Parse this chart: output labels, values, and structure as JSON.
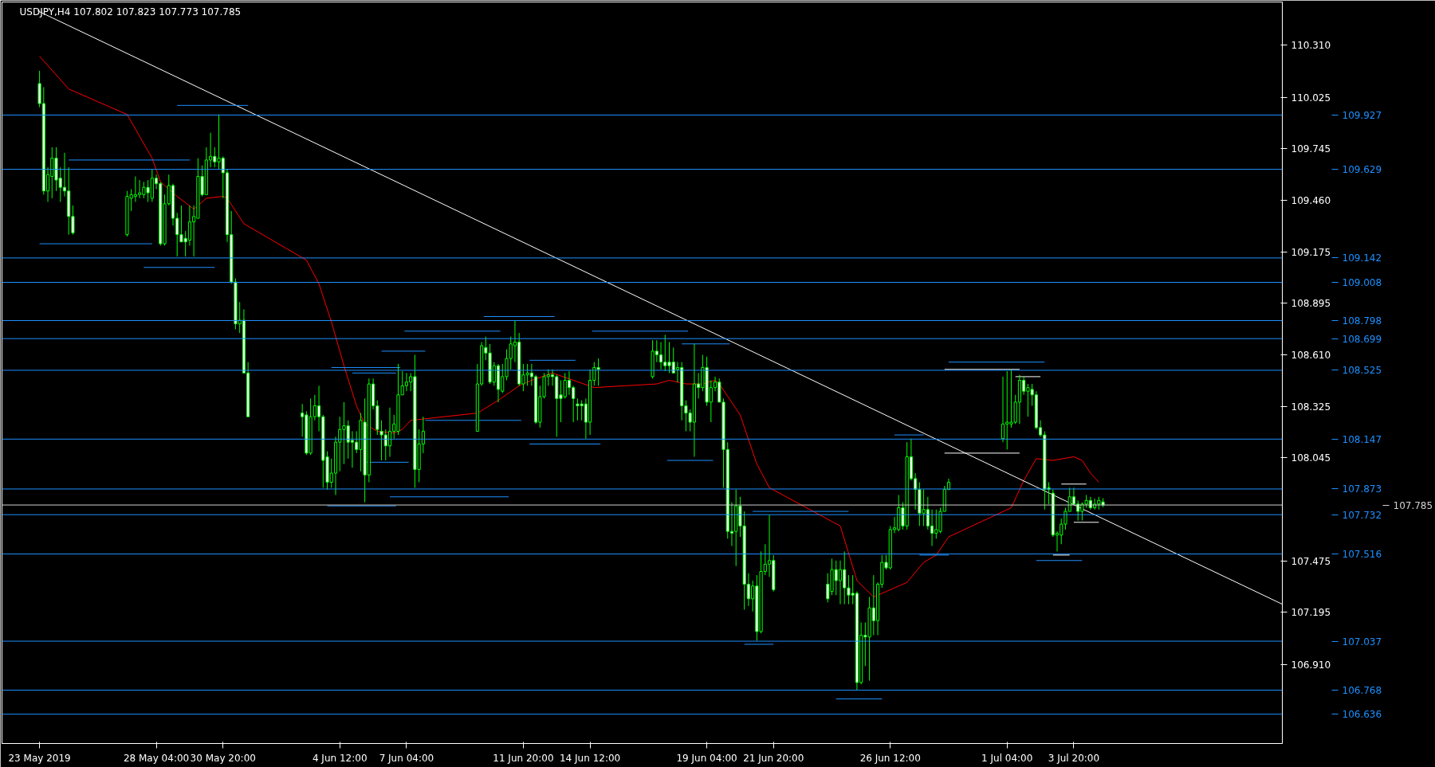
{
  "chart_data": {
    "type": "candlestick",
    "title": "USDJPY,H4  107.802 107.823 107.773 107.785",
    "color": "#00ff00",
    "x": [
      "2019-05-23T12:00",
      "2019-05-23T16:00",
      "2019-05-23T20:00",
      "2019-05-24T00:00",
      "2019-05-24T04:00",
      "2019-05-24T08:00",
      "2019-05-24T12:00",
      "2019-05-24T16:00",
      "2019-05-24T20:00",
      "2019-05-27T00:00",
      "2019-05-27T04:00",
      "2019-05-27T08:00",
      "2019-05-27T12:00",
      "2019-05-27T16:00",
      "2019-05-27T20:00",
      "2019-05-28T00:00",
      "2019-05-28T04:00",
      "2019-05-28T08:00",
      "2019-05-28T12:00",
      "2019-05-28T16:00",
      "2019-05-28T20:00",
      "2019-05-29T00:00",
      "2019-05-29T04:00",
      "2019-05-29T08:00",
      "2019-05-29T12:00",
      "2019-05-29T16:00",
      "2019-05-29T20:00",
      "2019-05-30T00:00",
      "2019-05-30T04:00",
      "2019-05-30T08:00",
      "2019-05-30T12:00",
      "2019-05-30T16:00",
      "2019-05-30T20:00",
      "2019-05-31T00:00",
      "2019-05-31T04:00",
      "2019-05-31T08:00",
      "2019-05-31T12:00",
      "2019-05-31T16:00",
      "2019-05-31T20:00",
      "2019-06-03T00:00",
      "2019-06-03T04:00",
      "2019-06-03T08:00",
      "2019-06-03T12:00",
      "2019-06-03T16:00",
      "2019-06-03T20:00",
      "2019-06-04T00:00",
      "2019-06-04T04:00",
      "2019-06-04T08:00",
      "2019-06-04T12:00",
      "2019-06-04T16:00",
      "2019-06-04T20:00",
      "2019-06-05T00:00",
      "2019-06-05T04:00",
      "2019-06-05T08:00",
      "2019-06-05T12:00",
      "2019-06-05T16:00",
      "2019-06-05T20:00",
      "2019-06-06T00:00",
      "2019-06-06T04:00",
      "2019-06-06T08:00",
      "2019-06-06T12:00",
      "2019-06-06T16:00",
      "2019-06-06T20:00",
      "2019-06-07T00:00",
      "2019-06-07T04:00",
      "2019-06-07T08:00",
      "2019-06-07T12:00",
      "2019-06-07T16:00",
      "2019-06-07T20:00",
      "2019-06-10T00:00",
      "2019-06-10T04:00",
      "2019-06-10T08:00",
      "2019-06-10T12:00",
      "2019-06-10T16:00",
      "2019-06-10T20:00",
      "2019-06-11T00:00",
      "2019-06-11T04:00",
      "2019-06-11T08:00",
      "2019-06-11T12:00",
      "2019-06-11T16:00",
      "2019-06-11T20:00",
      "2019-06-12T00:00",
      "2019-06-12T04:00",
      "2019-06-12T08:00",
      "2019-06-12T12:00",
      "2019-06-12T16:00",
      "2019-06-12T20:00",
      "2019-06-13T00:00",
      "2019-06-13T04:00",
      "2019-06-13T08:00",
      "2019-06-13T12:00",
      "2019-06-13T16:00",
      "2019-06-13T20:00",
      "2019-06-14T00:00",
      "2019-06-14T04:00",
      "2019-06-14T08:00",
      "2019-06-14T12:00",
      "2019-06-14T16:00",
      "2019-06-14T20:00",
      "2019-06-17T00:00",
      "2019-06-17T04:00",
      "2019-06-17T08:00",
      "2019-06-17T12:00",
      "2019-06-17T16:00",
      "2019-06-17T20:00",
      "2019-06-18T00:00",
      "2019-06-18T04:00",
      "2019-06-18T08:00",
      "2019-06-18T12:00",
      "2019-06-18T16:00",
      "2019-06-18T20:00",
      "2019-06-19T00:00",
      "2019-06-19T04:00",
      "2019-06-19T08:00",
      "2019-06-19T12:00",
      "2019-06-19T16:00",
      "2019-06-19T20:00",
      "2019-06-20T00:00",
      "2019-06-20T04:00",
      "2019-06-20T08:00",
      "2019-06-20T12:00",
      "2019-06-20T16:00",
      "2019-06-20T20:00",
      "2019-06-21T00:00",
      "2019-06-21T04:00",
      "2019-06-21T08:00",
      "2019-06-21T12:00",
      "2019-06-21T16:00",
      "2019-06-21T20:00",
      "2019-06-24T00:00",
      "2019-06-24T04:00",
      "2019-06-24T08:00",
      "2019-06-24T12:00",
      "2019-06-24T16:00",
      "2019-06-24T20:00",
      "2019-06-25T00:00",
      "2019-06-25T04:00",
      "2019-06-25T08:00",
      "2019-06-25T12:00",
      "2019-06-25T16:00",
      "2019-06-25T20:00",
      "2019-06-26T00:00",
      "2019-06-26T04:00",
      "2019-06-26T08:00",
      "2019-06-26T12:00",
      "2019-06-26T16:00",
      "2019-06-26T20:00",
      "2019-06-27T00:00",
      "2019-06-27T04:00",
      "2019-06-27T08:00",
      "2019-06-27T12:00",
      "2019-06-27T16:00",
      "2019-06-27T20:00",
      "2019-06-28T00:00",
      "2019-06-28T04:00",
      "2019-06-28T08:00",
      "2019-06-28T12:00",
      "2019-06-28T16:00",
      "2019-06-28T20:00",
      "2019-07-01T00:00",
      "2019-07-01T04:00",
      "2019-07-01T08:00",
      "2019-07-01T12:00",
      "2019-07-01T16:00",
      "2019-07-01T20:00",
      "2019-07-02T00:00",
      "2019-07-02T04:00",
      "2019-07-02T08:00",
      "2019-07-02T12:00",
      "2019-07-02T16:00",
      "2019-07-02T20:00",
      "2019-07-03T00:00",
      "2019-07-03T04:00",
      "2019-07-03T08:00",
      "2019-07-03T12:00",
      "2019-07-03T16:00",
      "2019-07-03T20:00",
      "2019-07-04T00:00",
      "2019-07-04T04:00",
      "2019-07-04T08:00",
      "2019-07-04T12:00",
      "2019-07-04T16:00",
      "2019-07-04T20:00",
      "2019-07-05T00:00"
    ],
    "ohlc": [
      [
        110.1,
        110.17,
        109.97,
        109.99
      ],
      [
        109.99,
        110.08,
        109.49,
        109.51
      ],
      [
        109.51,
        109.64,
        109.45,
        109.6
      ],
      [
        109.59,
        109.75,
        109.47,
        109.69
      ],
      [
        109.69,
        109.75,
        109.51,
        109.57
      ],
      [
        109.58,
        109.64,
        109.45,
        109.53
      ],
      [
        109.53,
        109.72,
        109.48,
        109.51
      ],
      [
        109.51,
        109.64,
        109.27,
        109.37
      ],
      [
        109.37,
        109.43,
        109.27,
        109.28
      ],
      [
        109.27,
        109.51,
        109.26,
        109.48
      ],
      [
        109.47,
        109.52,
        109.4,
        109.49
      ],
      [
        109.48,
        109.59,
        109.45,
        109.49
      ],
      [
        109.49,
        109.57,
        109.47,
        109.5
      ],
      [
        109.49,
        109.56,
        109.47,
        109.53
      ],
      [
        109.53,
        109.57,
        109.45,
        109.5
      ],
      [
        109.47,
        109.63,
        109.45,
        109.58
      ],
      [
        109.58,
        109.6,
        109.52,
        109.55
      ],
      [
        109.55,
        109.56,
        109.21,
        109.22
      ],
      [
        109.22,
        109.49,
        109.21,
        109.44
      ],
      [
        109.44,
        109.6,
        109.43,
        109.54
      ],
      [
        109.54,
        109.55,
        109.32,
        109.36
      ],
      [
        109.36,
        109.39,
        109.15,
        109.27
      ],
      [
        109.27,
        109.43,
        109.23,
        109.23
      ],
      [
        109.25,
        109.29,
        109.15,
        109.23
      ],
      [
        109.24,
        109.43,
        109.21,
        109.34
      ],
      [
        109.34,
        109.43,
        109.15,
        109.37
      ],
      [
        109.36,
        109.69,
        109.36,
        109.59
      ],
      [
        109.59,
        109.65,
        109.48,
        109.49
      ],
      [
        109.49,
        109.75,
        109.49,
        109.68
      ],
      [
        109.68,
        109.83,
        109.64,
        109.7
      ],
      [
        109.7,
        109.75,
        109.64,
        109.67
      ],
      [
        109.67,
        109.93,
        109.63,
        109.69
      ],
      [
        109.69,
        109.7,
        109.47,
        109.61
      ],
      [
        109.61,
        109.63,
        109.23,
        109.27
      ],
      [
        109.27,
        109.4,
        109.0,
        109.01
      ],
      [
        109.01,
        109.03,
        108.75,
        108.78
      ],
      [
        108.78,
        108.9,
        108.73,
        108.8
      ],
      [
        108.8,
        108.86,
        108.51,
        108.51
      ],
      [
        108.51,
        108.57,
        108.27,
        108.27
      ],
      [
        108.29,
        108.34,
        108.16,
        108.27
      ],
      [
        108.28,
        108.3,
        108.06,
        108.07
      ],
      [
        108.07,
        108.37,
        108.06,
        108.27
      ],
      [
        108.27,
        108.39,
        108.25,
        108.33
      ],
      [
        108.33,
        108.44,
        108.19,
        108.27
      ],
      [
        108.27,
        108.28,
        107.88,
        108.03
      ],
      [
        108.05,
        108.08,
        107.87,
        107.91
      ],
      [
        107.91,
        108.04,
        107.88,
        107.96
      ],
      [
        107.96,
        108.16,
        107.84,
        108.13
      ],
      [
        108.13,
        108.27,
        107.97,
        108.2
      ],
      [
        108.2,
        108.35,
        108.01,
        108.22
      ],
      [
        108.22,
        108.25,
        108.04,
        108.13
      ],
      [
        108.14,
        108.19,
        107.99,
        108.13
      ],
      [
        108.13,
        108.19,
        108.07,
        108.09
      ],
      [
        108.09,
        108.29,
        107.97,
        108.25
      ],
      [
        108.24,
        108.37,
        107.8,
        107.95
      ],
      [
        107.95,
        108.48,
        107.91,
        108.45
      ],
      [
        108.45,
        108.48,
        108.31,
        108.33
      ],
      [
        108.33,
        108.36,
        108.17,
        108.2
      ],
      [
        108.19,
        108.25,
        108.03,
        108.17
      ],
      [
        108.17,
        108.2,
        108.03,
        108.11
      ],
      [
        108.11,
        108.32,
        108.05,
        108.19
      ],
      [
        108.19,
        108.28,
        108.15,
        108.23
      ],
      [
        108.19,
        108.56,
        108.17,
        108.39
      ],
      [
        108.39,
        108.52,
        108.39,
        108.44
      ],
      [
        108.44,
        108.51,
        108.41,
        108.46
      ],
      [
        108.46,
        108.51,
        108.41,
        108.49
      ],
      [
        108.49,
        108.61,
        107.88,
        107.98
      ],
      [
        107.98,
        108.2,
        107.91,
        108.12
      ],
      [
        108.12,
        108.27,
        108.07,
        108.19
      ],
      [
        108.19,
        108.56,
        108.19,
        108.45
      ],
      [
        108.45,
        108.68,
        108.44,
        108.66
      ],
      [
        108.65,
        108.71,
        108.58,
        108.62
      ],
      [
        108.62,
        108.67,
        108.45,
        108.46
      ],
      [
        108.46,
        108.57,
        108.44,
        108.55
      ],
      [
        108.55,
        108.56,
        108.35,
        108.42
      ],
      [
        108.41,
        108.56,
        108.4,
        108.49
      ],
      [
        108.49,
        108.64,
        108.47,
        108.59
      ],
      [
        108.59,
        108.71,
        108.53,
        108.67
      ],
      [
        108.66,
        108.8,
        108.57,
        108.68
      ],
      [
        108.68,
        108.73,
        108.44,
        108.45
      ],
      [
        108.45,
        108.56,
        108.41,
        108.5
      ],
      [
        108.5,
        108.56,
        108.44,
        108.51
      ],
      [
        108.51,
        108.56,
        108.44,
        108.49
      ],
      [
        108.49,
        108.5,
        108.23,
        108.24
      ],
      [
        108.24,
        108.44,
        108.21,
        108.38
      ],
      [
        108.38,
        108.51,
        108.37,
        108.49
      ],
      [
        108.49,
        108.53,
        108.44,
        108.5
      ],
      [
        108.5,
        108.53,
        108.44,
        108.49
      ],
      [
        108.49,
        108.5,
        108.16,
        108.37
      ],
      [
        108.39,
        108.47,
        108.24,
        108.37
      ],
      [
        108.38,
        108.51,
        108.37,
        108.47
      ],
      [
        108.47,
        108.52,
        108.39,
        108.43
      ],
      [
        108.43,
        108.44,
        108.24,
        108.37
      ],
      [
        108.34,
        108.37,
        108.25,
        108.33
      ],
      [
        108.34,
        108.36,
        108.25,
        108.33
      ],
      [
        108.34,
        108.37,
        108.15,
        108.24
      ],
      [
        108.24,
        108.53,
        108.17,
        108.47
      ],
      [
        108.47,
        108.57,
        108.44,
        108.54
      ],
      [
        108.54,
        108.59,
        108.44,
        108.53
      ],
      [
        108.49,
        108.69,
        108.48,
        108.63
      ],
      [
        108.63,
        108.69,
        108.57,
        108.61
      ],
      [
        108.61,
        108.68,
        108.53,
        108.57
      ],
      [
        108.57,
        108.72,
        108.52,
        108.55
      ],
      [
        108.57,
        108.68,
        108.51,
        108.55
      ],
      [
        108.57,
        108.65,
        108.51,
        108.51
      ],
      [
        108.53,
        108.57,
        108.46,
        108.54
      ],
      [
        108.54,
        108.57,
        108.25,
        108.33
      ],
      [
        108.33,
        108.36,
        108.19,
        108.29
      ],
      [
        108.29,
        108.31,
        108.19,
        108.24
      ],
      [
        108.24,
        108.67,
        108.05,
        108.45
      ],
      [
        108.45,
        108.51,
        108.37,
        108.43
      ],
      [
        108.43,
        108.61,
        108.41,
        108.54
      ],
      [
        108.54,
        108.6,
        108.33,
        108.35
      ],
      [
        108.35,
        108.47,
        108.24,
        108.43
      ],
      [
        108.43,
        108.49,
        108.41,
        108.46
      ],
      [
        108.46,
        108.48,
        108.35,
        108.35
      ],
      [
        108.35,
        108.37,
        107.88,
        108.09
      ],
      [
        108.09,
        108.13,
        107.6,
        107.64
      ],
      [
        107.64,
        107.8,
        107.56,
        107.63
      ],
      [
        107.64,
        107.87,
        107.45,
        107.78
      ],
      [
        107.78,
        107.83,
        107.61,
        107.67
      ],
      [
        107.67,
        107.75,
        107.21,
        107.35
      ],
      [
        107.35,
        107.41,
        107.23,
        107.27
      ],
      [
        107.27,
        107.37,
        107.2,
        107.34
      ],
      [
        107.34,
        107.4,
        107.04,
        107.09
      ],
      [
        107.09,
        107.53,
        107.08,
        107.42
      ],
      [
        107.42,
        107.57,
        107.4,
        107.46
      ],
      [
        107.46,
        107.73,
        107.39,
        107.48
      ],
      [
        107.48,
        107.51,
        107.31,
        107.32
      ],
      [
        107.35,
        107.41,
        107.25,
        107.27
      ],
      [
        107.31,
        107.49,
        107.29,
        107.43
      ],
      [
        107.43,
        107.48,
        107.29,
        107.37
      ],
      [
        107.37,
        107.48,
        107.24,
        107.43
      ],
      [
        107.43,
        107.53,
        107.24,
        107.33
      ],
      [
        107.33,
        107.4,
        107.24,
        107.29
      ],
      [
        107.3,
        107.4,
        107.24,
        107.29
      ],
      [
        107.3,
        107.31,
        106.77,
        106.81
      ],
      [
        106.81,
        107.14,
        106.8,
        107.07
      ],
      [
        107.07,
        107.14,
        106.9,
        107.06
      ],
      [
        107.06,
        107.28,
        106.82,
        107.22
      ],
      [
        107.22,
        107.4,
        107.07,
        107.15
      ],
      [
        107.15,
        107.36,
        107.07,
        107.35
      ],
      [
        107.35,
        107.51,
        107.33,
        107.47
      ],
      [
        107.47,
        107.51,
        107.43,
        107.44
      ],
      [
        107.44,
        107.67,
        107.43,
        107.65
      ],
      [
        107.65,
        107.72,
        107.63,
        107.66
      ],
      [
        107.65,
        107.84,
        107.64,
        107.77
      ],
      [
        107.77,
        107.8,
        107.65,
        107.67
      ],
      [
        107.67,
        108.13,
        107.65,
        108.05
      ],
      [
        108.05,
        108.15,
        107.92,
        107.93
      ],
      [
        107.93,
        107.96,
        107.76,
        107.87
      ],
      [
        107.87,
        107.91,
        107.67,
        107.74
      ],
      [
        107.74,
        107.87,
        107.67,
        107.76
      ],
      [
        107.76,
        107.83,
        107.65,
        107.67
      ],
      [
        107.67,
        107.76,
        107.56,
        107.63
      ],
      [
        107.63,
        107.76,
        107.6,
        107.65
      ],
      [
        107.64,
        107.77,
        107.63,
        107.75
      ],
      [
        107.75,
        107.89,
        107.75,
        107.87
      ],
      [
        107.87,
        107.93,
        107.87,
        107.91
      ],
      [
        108.15,
        108.49,
        108.13,
        108.23
      ],
      [
        108.23,
        108.52,
        108.09,
        108.24
      ],
      [
        108.23,
        108.53,
        108.21,
        108.24
      ],
      [
        108.24,
        108.39,
        108.23,
        108.35
      ],
      [
        108.35,
        108.5,
        108.23,
        108.47
      ],
      [
        108.47,
        108.49,
        108.39,
        108.41
      ],
      [
        108.41,
        108.45,
        108.27,
        108.43
      ],
      [
        108.42,
        108.45,
        108.33,
        108.39
      ],
      [
        108.39,
        108.41,
        108.2,
        108.21
      ],
      [
        108.21,
        108.25,
        108.16,
        108.17
      ],
      [
        108.17,
        108.19,
        107.76,
        107.87
      ],
      [
        107.88,
        107.91,
        107.79,
        107.87
      ],
      [
        107.85,
        107.87,
        107.61,
        107.62
      ],
      [
        107.62,
        107.64,
        107.53,
        107.63
      ],
      [
        107.62,
        107.71,
        107.57,
        107.68
      ],
      [
        107.68,
        107.77,
        107.65,
        107.75
      ],
      [
        107.75,
        107.88,
        107.75,
        107.83
      ],
      [
        107.83,
        107.88,
        107.79,
        107.79
      ],
      [
        107.79,
        107.81,
        107.7,
        107.75
      ],
      [
        107.75,
        107.8,
        107.7,
        107.79
      ],
      [
        107.79,
        107.84,
        107.77,
        107.81
      ],
      [
        107.81,
        107.83,
        107.76,
        107.77
      ],
      [
        107.77,
        107.82,
        107.76,
        107.79
      ],
      [
        107.79,
        107.83,
        107.76,
        107.81
      ],
      [
        107.802,
        107.823,
        107.773,
        107.785
      ]
    ],
    "xlim": [
      "2019-05-22T00:00",
      "2019-07-12T04:00"
    ],
    "xticks": [
      {
        "value": "2019-05-23T12:00",
        "label": "23 May 2019"
      },
      {
        "value": "2019-05-28T04:00",
        "label": "28 May 04:00"
      },
      {
        "value": "2019-05-30T20:00",
        "label": "30 May 20:00"
      },
      {
        "value": "2019-06-04T12:00",
        "label": "4 Jun 12:00"
      },
      {
        "value": "2019-06-07T04:00",
        "label": "7 Jun 04:00"
      },
      {
        "value": "2019-06-11T20:00",
        "label": "11 Jun 20:00"
      },
      {
        "value": "2019-06-14T12:00",
        "label": "14 Jun 12:00"
      },
      {
        "value": "2019-06-19T04:00",
        "label": "19 Jun 04:00"
      },
      {
        "value": "2019-06-21T20:00",
        "label": "21 Jun 20:00"
      },
      {
        "value": "2019-06-26T12:00",
        "label": "26 Jun 12:00"
      },
      {
        "value": "2019-07-01T04:00",
        "label": "1 Jul 04:00"
      },
      {
        "value": "2019-07-03T20:00",
        "label": "3 Jul 20:00"
      }
    ],
    "ylim": [
      106.475,
      110.548
    ],
    "yticks": [
      {
        "value": 110.31,
        "label": "110.310"
      },
      110.025,
      109.745,
      {
        "value": 109.46,
        "label": "109.460"
      },
      109.175,
      108.895,
      {
        "value": 108.61,
        "label": "108.610"
      },
      108.325,
      108.045,
      107.475,
      107.195,
      {
        "value": 106.91,
        "label": "106.910"
      }
    ],
    "ref_lines": [
      {
        "axis": "y",
        "value": 109.927,
        "label": "109.927",
        "color": "#1e90ff"
      },
      {
        "axis": "y",
        "value": 109.629,
        "label": "109.629",
        "color": "#1e90ff"
      },
      {
        "axis": "y",
        "value": 109.142,
        "label": "109.142",
        "color": "#1e90ff"
      },
      {
        "axis": "y",
        "value": 109.008,
        "label": "109.008",
        "color": "#1e90ff"
      },
      {
        "axis": "y",
        "value": 108.798,
        "label": "108.798",
        "color": "#1e90ff"
      },
      {
        "axis": "y",
        "value": 108.699,
        "label": "108.699",
        "color": "#1e90ff"
      },
      {
        "axis": "y",
        "value": 108.525,
        "label": "108.525",
        "color": "#1e90ff"
      },
      {
        "axis": "y",
        "value": 108.147,
        "label": "108.147",
        "color": "#1e90ff"
      },
      {
        "axis": "y",
        "value": 107.873,
        "label": "107.873",
        "color": "#1e90ff"
      },
      {
        "axis": "y",
        "value": 107.785,
        "label": "107.785",
        "color": "#d0d0d0"
      },
      {
        "axis": "y",
        "value": 107.732,
        "label": "107.732",
        "color": "#1e90ff"
      },
      {
        "axis": "y",
        "value": 107.516,
        "label": "107.516",
        "color": "#1e90ff"
      },
      {
        "axis": "y",
        "value": 107.037,
        "label": "107.037",
        "color": "#1e90ff"
      },
      {
        "axis": "y",
        "value": 106.768,
        "label": "106.768",
        "color": "#1e90ff"
      },
      {
        "axis": "y",
        "value": 106.636,
        "label": "106.636",
        "color": "#1e90ff"
      }
    ],
    "series": [
      {
        "type": "line",
        "color": "#ff0000",
        "x": [
          "2019-05-23T12:00",
          "2019-05-24T16:00",
          "2019-05-27T00:00",
          "2019-05-28T00:00",
          "2019-05-28T08:00",
          "2019-05-29T00:00",
          "2019-05-29T16:00",
          "2019-05-29T20:00",
          "2019-05-30T04:00",
          "2019-05-30T20:00",
          "2019-05-31T00:00",
          "2019-05-31T16:00",
          "2019-06-03T04:00",
          "2019-06-03T16:00",
          "2019-06-04T04:00",
          "2019-06-04T16:00",
          "2019-06-05T04:00",
          "2019-06-05T12:00",
          "2019-06-06T00:00",
          "2019-06-06T16:00",
          "2019-06-07T00:00",
          "2019-06-07T08:00",
          "2019-06-10T00:00",
          "2019-06-10T20:00",
          "2019-06-11T16:00",
          "2019-06-12T04:00",
          "2019-06-13T00:00",
          "2019-06-13T20:00",
          "2019-06-14T16:00",
          "2019-06-17T04:00",
          "2019-06-17T16:00",
          "2019-06-18T08:00",
          "2019-06-19T00:00",
          "2019-06-19T12:00",
          "2019-06-19T16:00",
          "2019-06-20T12:00",
          "2019-06-21T04:00",
          "2019-06-21T16:00",
          "2019-06-24T12:00",
          "2019-06-25T04:00",
          "2019-06-25T20:00",
          "2019-06-26T08:00",
          "2019-06-27T04:00",
          "2019-06-27T20:00",
          "2019-06-28T08:00",
          "2019-06-28T20:00",
          "2019-07-01T08:00",
          "2019-07-01T20:00",
          "2019-07-02T08:00",
          "2019-07-03T00:00",
          "2019-07-03T20:00",
          "2019-07-04T04:00",
          "2019-07-04T12:00",
          "2019-07-04T20:00"
        ],
        "values": [
          110.25,
          110.07,
          109.93,
          109.69,
          109.56,
          109.48,
          109.41,
          109.43,
          109.47,
          109.48,
          109.47,
          109.33,
          109.13,
          109.0,
          108.79,
          108.55,
          108.33,
          108.23,
          108.19,
          108.18,
          108.2,
          108.25,
          108.29,
          108.36,
          108.44,
          108.47,
          108.51,
          108.47,
          108.43,
          108.45,
          108.47,
          108.45,
          108.45,
          108.47,
          108.45,
          108.28,
          108.01,
          107.88,
          107.67,
          107.37,
          107.28,
          107.31,
          107.36,
          107.47,
          107.51,
          107.61,
          107.77,
          107.92,
          108.04,
          108.03,
          108.05,
          108.03,
          107.96,
          107.91
        ]
      },
      {
        "type": "line",
        "color": "#ffffff",
        "x": [
          "2019-05-23T10:00",
          "2019-07-12T04:00"
        ],
        "values": [
          110.5,
          107.24
        ]
      },
      {
        "type": "line",
        "color": "#1e90ff",
        "x": [
          "2019-05-29T00:00",
          "2019-05-31T20:00"
        ],
        "values": [
          109.98,
          109.98
        ]
      },
      {
        "type": "line",
        "color": "#1e90ff",
        "x": [
          "2019-05-24T16:00",
          "2019-05-29T12:00"
        ],
        "values": [
          109.68,
          109.68
        ]
      },
      {
        "type": "line",
        "color": "#1e90ff",
        "x": [
          "2019-05-23T12:00",
          "2019-05-28T00:00"
        ],
        "values": [
          109.22,
          109.22
        ]
      },
      {
        "type": "line",
        "color": "#1e90ff",
        "x": [
          "2019-05-27T16:00",
          "2019-05-30T12:00"
        ],
        "values": [
          109.09,
          109.09
        ]
      },
      {
        "type": "line",
        "color": "#1e90ff",
        "x": [
          "2019-06-06T04:00",
          "2019-06-07T22:00"
        ],
        "values": [
          108.63,
          108.63
        ]
      },
      {
        "type": "line",
        "color": "#1e90ff",
        "x": [
          "2019-06-04T04:00",
          "2019-06-06T22:00"
        ],
        "values": [
          108.54,
          108.54
        ]
      },
      {
        "type": "line",
        "color": "#1e90ff",
        "x": [
          "2019-06-05T00:00",
          "2019-06-06T18:00"
        ],
        "values": [
          108.51,
          108.51
        ]
      },
      {
        "type": "line",
        "color": "#1e90ff",
        "x": [
          "2019-06-05T14:00",
          "2019-06-07T06:00"
        ],
        "values": [
          108.02,
          108.02
        ]
      },
      {
        "type": "line",
        "color": "#1e90ff",
        "x": [
          "2019-06-06T12:00",
          "2019-06-11T06:00"
        ],
        "values": [
          107.83,
          107.83
        ]
      },
      {
        "type": "line",
        "color": "#1e90ff",
        "x": [
          "2019-06-04T00:00",
          "2019-06-06T18:00"
        ],
        "values": [
          107.78,
          107.78
        ]
      },
      {
        "type": "line",
        "color": "#1e90ff",
        "x": [
          "2019-06-10T06:00",
          "2019-06-13T02:00"
        ],
        "values": [
          108.82,
          108.82
        ]
      },
      {
        "type": "line",
        "color": "#1e90ff",
        "x": [
          "2019-06-07T02:00",
          "2019-06-10T22:00"
        ],
        "values": [
          108.74,
          108.74
        ]
      },
      {
        "type": "line",
        "color": "#1e90ff",
        "x": [
          "2019-06-12T02:00",
          "2019-06-13T22:00"
        ],
        "values": [
          108.58,
          108.58
        ]
      },
      {
        "type": "line",
        "color": "#1e90ff",
        "x": [
          "2019-06-14T14:00",
          "2019-06-18T10:00"
        ],
        "values": [
          108.74,
          108.74
        ]
      },
      {
        "type": "line",
        "color": "#1e90ff",
        "x": [
          "2019-06-18T04:00",
          "2019-06-20T02:00"
        ],
        "values": [
          108.67,
          108.67
        ]
      },
      {
        "type": "line",
        "color": "#1e90ff",
        "x": [
          "2019-06-07T22:00",
          "2019-06-11T18:00"
        ],
        "values": [
          108.25,
          108.25
        ]
      },
      {
        "type": "line",
        "color": "#1e90ff",
        "x": [
          "2019-06-12T02:00",
          "2019-06-14T22:00"
        ],
        "values": [
          108.12,
          108.12
        ]
      },
      {
        "type": "line",
        "color": "#1e90ff",
        "x": [
          "2019-06-17T14:00",
          "2019-06-19T10:00"
        ],
        "values": [
          108.03,
          108.03
        ]
      },
      {
        "type": "line",
        "color": "#1e90ff",
        "x": [
          "2019-06-20T16:00",
          "2019-06-21T20:00"
        ],
        "values": [
          107.02,
          107.02
        ]
      },
      {
        "type": "line",
        "color": "#1e90ff",
        "x": [
          "2019-06-21T00:00",
          "2019-06-24T20:00"
        ],
        "values": [
          107.75,
          107.75
        ]
      },
      {
        "type": "line",
        "color": "#1e90ff",
        "x": [
          "2019-06-24T08:00",
          "2019-06-26T04:00"
        ],
        "values": [
          106.72,
          106.72
        ]
      },
      {
        "type": "line",
        "color": "#1e90ff",
        "x": [
          "2019-06-26T16:00",
          "2019-06-27T20:00"
        ],
        "values": [
          108.17,
          108.17
        ]
      },
      {
        "type": "line",
        "color": "#1e90ff",
        "x": [
          "2019-06-27T16:00",
          "2019-06-28T20:00"
        ],
        "values": [
          107.51,
          107.51
        ]
      },
      {
        "type": "line",
        "color": "#1e90ff",
        "x": [
          "2019-06-28T20:00",
          "2019-07-02T16:00"
        ],
        "values": [
          108.57,
          108.57
        ]
      },
      {
        "type": "line",
        "color": "#1e90ff",
        "x": [
          "2019-07-02T08:00",
          "2019-07-04T04:00"
        ],
        "values": [
          107.48,
          107.48
        ]
      },
      {
        "type": "line",
        "color": "#ffffff",
        "x": [
          "2019-06-28T16:00",
          "2019-07-01T16:00"
        ],
        "values": [
          108.53,
          108.53
        ]
      },
      {
        "type": "line",
        "color": "#ffffff",
        "x": [
          "2019-07-01T12:00",
          "2019-07-02T12:00"
        ],
        "values": [
          108.49,
          108.49
        ]
      },
      {
        "type": "line",
        "color": "#ffffff",
        "x": [
          "2019-06-28T16:00",
          "2019-07-01T16:00"
        ],
        "values": [
          108.07,
          108.07
        ]
      },
      {
        "type": "line",
        "color": "#ffffff",
        "x": [
          "2019-07-03T00:00",
          "2019-07-03T16:00"
        ],
        "values": [
          107.51,
          107.51
        ]
      },
      {
        "type": "line",
        "color": "#ffffff",
        "x": [
          "2019-07-03T08:00",
          "2019-07-04T08:00"
        ],
        "values": [
          107.9,
          107.9
        ]
      },
      {
        "type": "line",
        "color": "#ffffff",
        "x": [
          "2019-07-03T20:00",
          "2019-07-04T20:00"
        ],
        "values": [
          107.69,
          107.69
        ]
      }
    ]
  }
}
